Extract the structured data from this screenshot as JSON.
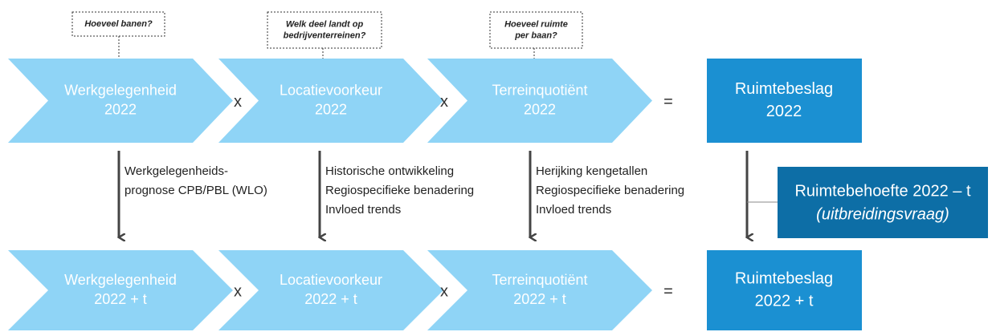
{
  "questions": [
    [
      "Hoeveel banen?"
    ],
    [
      "Welk deel landt op",
      "bedrijventerreinen?"
    ],
    [
      "Hoeveel ruimte",
      "per baan?"
    ]
  ],
  "top_row": {
    "factors": [
      [
        "Werkgelegenheid",
        "2022"
      ],
      [
        "Locatievoorkeur",
        "2022"
      ],
      [
        "Terreinquotiënt",
        "2022"
      ]
    ],
    "operators": [
      "x",
      "x",
      "="
    ],
    "result": [
      "Ruimtebeslag",
      "2022"
    ]
  },
  "methods": [
    [
      "Werkgelegenheids-",
      "prognose CPB/PBL (WLO)"
    ],
    [
      "Historische ontwikkeling",
      "Regiospecifieke benadering",
      "Invloed trends"
    ],
    [
      "Herijking kengetallen",
      "Regiospecifieke benadering",
      "Invloed trends"
    ]
  ],
  "need": [
    "Ruimtebehoefte 2022 – t",
    "(uitbreidingsvraag)"
  ],
  "bottom_row": {
    "factors": [
      [
        "Werkgelegenheid",
        "2022 + t"
      ],
      [
        "Locatievoorkeur",
        "2022 + t"
      ],
      [
        "Terreinquotiënt",
        "2022 + t"
      ]
    ],
    "operators": [
      "x",
      "x",
      "="
    ],
    "result": [
      "Ruimtebeslag",
      "2022 + t"
    ]
  }
}
